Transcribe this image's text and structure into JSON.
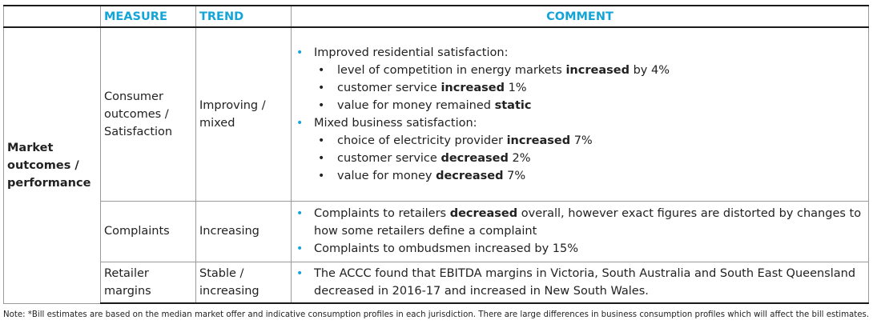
{
  "headers": {
    "area": "",
    "measure": "MEASURE",
    "trend": "TREND",
    "comment": "COMMENT"
  },
  "area_label": "Market outcomes / performance",
  "rows": [
    {
      "measure": "Consumer outcomes / Satisfaction",
      "trend": "Improving / mixed",
      "comments": [
        {
          "level": 1,
          "parts": [
            "Improved residential satisfaction:"
          ]
        },
        {
          "level": 2,
          "parts": [
            "level of competition in energy markets ",
            "increased",
            " by 4%"
          ]
        },
        {
          "level": 2,
          "parts": [
            "customer service ",
            "increased",
            " 1%"
          ]
        },
        {
          "level": 2,
          "parts": [
            "value for money remained ",
            "static",
            ""
          ]
        },
        {
          "level": 1,
          "parts": [
            "Mixed business satisfaction:"
          ]
        },
        {
          "level": 2,
          "parts": [
            "choice of electricity provider ",
            "increased",
            " 7%"
          ]
        },
        {
          "level": 2,
          "parts": [
            "customer service ",
            "decreased",
            " 2%"
          ]
        },
        {
          "level": 2,
          "parts": [
            "value for money ",
            "decreased",
            " 7%"
          ]
        }
      ]
    },
    {
      "measure": "Complaints",
      "trend": "Increasing",
      "comments": [
        {
          "level": 1,
          "parts": [
            "Complaints to retailers ",
            "decreased",
            " overall, however exact figures are distorted by changes to how some retailers define a complaint"
          ]
        },
        {
          "level": 1,
          "parts": [
            "Complaints to ombudsmen increased by 15%"
          ]
        }
      ]
    },
    {
      "measure": "Retailer margins",
      "trend": "Stable / increasing",
      "comments": [
        {
          "level": 1,
          "parts": [
            "The ACCC found that EBITDA margins in Victoria, South Australia and South East Queensland decreased in 2016-17 and increased in New South Wales."
          ]
        }
      ]
    }
  ],
  "note": "Note: *Bill estimates are based on the median market offer and indicative consumption profiles in each jurisdiction. There are large differences in business consumption profiles which will affect the bill estimates."
}
